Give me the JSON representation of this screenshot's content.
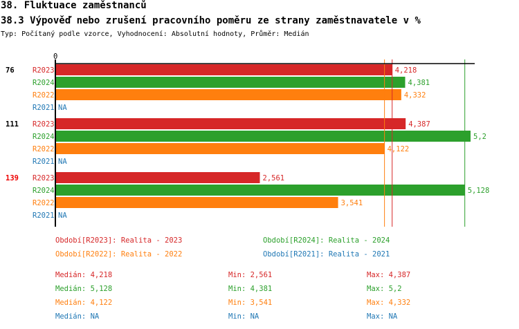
{
  "header": {
    "title": "38. Fluktuace zaměstnanců",
    "subtitle": "38.3 Výpověď nebo zrušení pracovního poměru ze strany zaměstnavatele v %",
    "info": "Typ: Počítaný podle vzorce, Vyhodnocení: Absolutní hodnoty, Průměr: Medián"
  },
  "chart_data": {
    "type": "bar",
    "orientation": "horizontal",
    "xlim": [
      0,
      5.2
    ],
    "x_tick_labels": [
      "0"
    ],
    "categories": [
      "76",
      "111",
      "139"
    ],
    "highlighted_category": "139",
    "series": [
      {
        "name": "R2023",
        "color": "#d62728",
        "values": [
          4.218,
          4.387,
          2.561
        ],
        "labels": [
          "4,218",
          "4,387",
          "2,561"
        ],
        "median": 4.218
      },
      {
        "name": "R2024",
        "color": "#2ca02c",
        "values": [
          4.381,
          5.2,
          5.128
        ],
        "labels": [
          "4,381",
          "5,2",
          "5,128"
        ],
        "median": 5.128
      },
      {
        "name": "R2022",
        "color": "#ff7f0e",
        "values": [
          4.332,
          4.122,
          3.541
        ],
        "labels": [
          "4,332",
          "4,122",
          "3,541"
        ],
        "median": 4.122
      },
      {
        "name": "R2021",
        "color": "#1f77b4",
        "values": [
          null,
          null,
          null
        ],
        "labels": [
          "NA",
          "NA",
          "NA"
        ],
        "median": null
      }
    ]
  },
  "legend": [
    {
      "text": "Období[R2023]: Realita - 2023",
      "color": "#d62728"
    },
    {
      "text": "Období[R2024]: Realita - 2024",
      "color": "#2ca02c"
    },
    {
      "text": "Období[R2022]: Realita - 2022",
      "color": "#ff7f0e"
    },
    {
      "text": "Období[R2021]: Realita - 2021",
      "color": "#1f77b4"
    }
  ],
  "stats": [
    {
      "median": "Medián: 4,218",
      "min": "Min: 2,561",
      "max": "Max: 4,387",
      "color": "#d62728"
    },
    {
      "median": "Medián: 5,128",
      "min": "Min: 4,381",
      "max": "Max: 5,2",
      "color": "#2ca02c"
    },
    {
      "median": "Medián: 4,122",
      "min": "Min: 3,541",
      "max": "Max: 4,332",
      "color": "#ff7f0e"
    },
    {
      "median": "Medián: NA",
      "min": "Min: NA",
      "max": "Max: NA",
      "color": "#1f77b4"
    }
  ]
}
